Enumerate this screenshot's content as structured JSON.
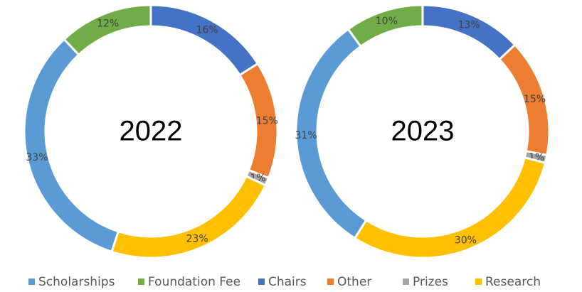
{
  "chart_data": [
    {
      "type": "pie",
      "title": "2022",
      "categories": [
        "Chairs",
        "Other",
        "Prizes",
        "Research",
        "Scholarships",
        "Foundation Fee"
      ],
      "values": [
        16,
        15,
        1,
        23,
        33,
        12
      ],
      "value_labels": [
        "16%",
        "15%",
        "1%",
        "23%",
        "33%",
        "12%"
      ],
      "colors": [
        "#4472c4",
        "#ed7d31",
        "#a5a5a5",
        "#ffc000",
        "#5b9bd5",
        "#70ad47"
      ]
    },
    {
      "type": "pie",
      "title": "2023",
      "categories": [
        "Chairs",
        "Other",
        "Prizes",
        "Research",
        "Scholarships",
        "Foundation Fee"
      ],
      "values": [
        13,
        15,
        1,
        30,
        31,
        10
      ],
      "value_labels": [
        "13%",
        "15%",
        "1%",
        "30%",
        "31%",
        "10%"
      ],
      "colors": [
        "#4472c4",
        "#ed7d31",
        "#a5a5a5",
        "#ffc000",
        "#5b9bd5",
        "#70ad47"
      ]
    }
  ]
}
